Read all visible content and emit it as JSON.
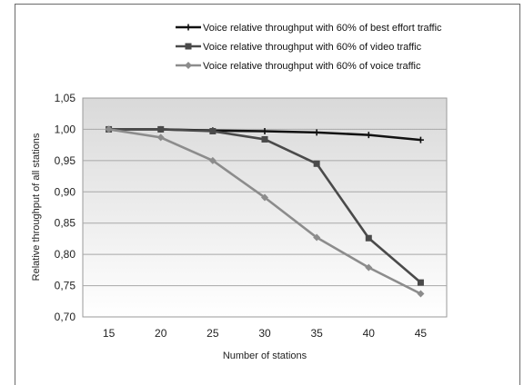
{
  "chart_data": {
    "type": "line",
    "x": [
      15,
      20,
      25,
      30,
      35,
      40,
      45
    ],
    "series": [
      {
        "name": "Voice relative throughput with 60% of best effort traffic",
        "values": [
          1.0,
          1.0,
          0.998,
          0.997,
          0.995,
          0.991,
          0.983
        ],
        "color": "#111111",
        "marker": "plus"
      },
      {
        "name": "Voice relative throughput with 60% of video traffic",
        "values": [
          1.0,
          1.0,
          0.997,
          0.984,
          0.945,
          0.826,
          0.755
        ],
        "color": "#4a4a4a",
        "marker": "square"
      },
      {
        "name": "Voice relative throughput with 60% of voice traffic",
        "values": [
          1.0,
          0.987,
          0.95,
          0.891,
          0.827,
          0.779,
          0.737
        ],
        "color": "#8c8c8c",
        "marker": "diamond"
      }
    ],
    "xlabel": "Number of stations",
    "ylabel": "Relative throughput of all stations",
    "ylim": [
      0.7,
      1.05
    ],
    "yticks": [
      "0,70",
      "0,75",
      "0,80",
      "0,85",
      "0,90",
      "0,95",
      "1,00",
      "1,05"
    ],
    "xticks": [
      "15",
      "20",
      "25",
      "30",
      "35",
      "40",
      "45"
    ],
    "grid": true,
    "legend_position": "top-right"
  }
}
